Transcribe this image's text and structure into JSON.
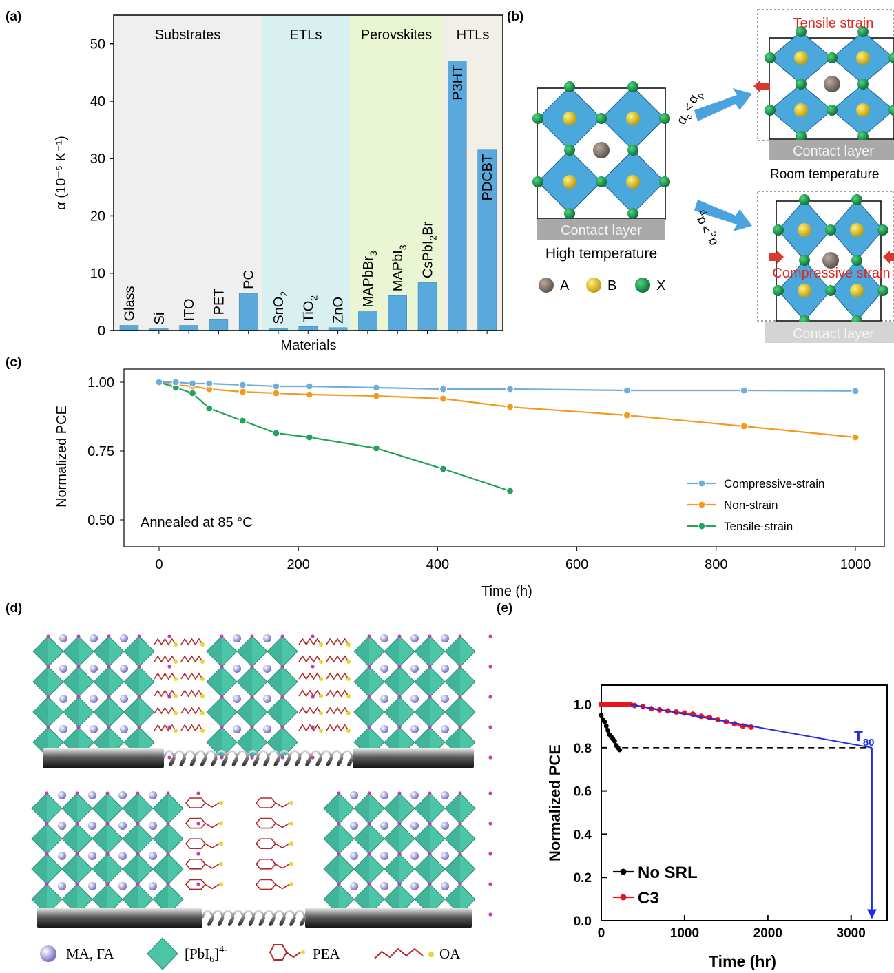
{
  "panels": {
    "a": "(a)",
    "b": "(b)",
    "c": "(c)",
    "d": "(d)",
    "e": "(e)"
  },
  "colors": {
    "bar": "#5aa9dc",
    "substrates_bg": "#efefef",
    "etls_bg": "#d9f0f0",
    "perovskites_bg": "#eaf5d3",
    "htls_bg": "#f2efe9",
    "compressive": "#6faedc",
    "nonstrain": "#f39a1e",
    "tensile": "#22a35a",
    "no_srl": "#000000",
    "c3": "#e8141b",
    "fit": "#1f2ee6",
    "red_text": "#e0261f"
  },
  "chart_data": [
    {
      "id": "a",
      "type": "bar",
      "ylabel": "α (10⁻⁵ K⁻¹)",
      "xlabel": "Materials",
      "ylim": [
        0,
        55
      ],
      "yticks": [
        0,
        10,
        20,
        30,
        40,
        50
      ],
      "groups": [
        {
          "name": "Substrates",
          "from": 0,
          "to": 4
        },
        {
          "name": "ETLs",
          "from": 5,
          "to": 7
        },
        {
          "name": "Perovskites",
          "from": 8,
          "to": 10
        },
        {
          "name": "HTLs",
          "from": 11,
          "to": 12
        }
      ],
      "categories": [
        "Glass",
        "Si",
        "ITO",
        "PET",
        "PC",
        "SnO2",
        "TiO2",
        "ZnO",
        "MAPbBr3",
        "MAPbI3",
        "CsPbI2Br",
        "P3HT",
        "PDCBT"
      ],
      "category_display": [
        {
          "main": "Glass",
          "sub": ""
        },
        {
          "main": "Si",
          "sub": ""
        },
        {
          "main": "ITO",
          "sub": ""
        },
        {
          "main": "PET",
          "sub": ""
        },
        {
          "main": "PC",
          "sub": ""
        },
        {
          "main": "SnO",
          "sub": "2"
        },
        {
          "main": "TiO",
          "sub": "2"
        },
        {
          "main": "ZnO",
          "sub": ""
        },
        {
          "main": "MAPbBr",
          "sub": "3"
        },
        {
          "main": "MAPbI",
          "sub": "3"
        },
        {
          "main": "CsPbI",
          "sub": "2",
          "tail": "Br"
        },
        {
          "main": "P3HT",
          "sub": ""
        },
        {
          "main": "PDCBT",
          "sub": ""
        }
      ],
      "values": [
        0.9,
        0.3,
        0.9,
        2.0,
        6.5,
        0.4,
        0.7,
        0.5,
        3.3,
        6.1,
        8.4,
        47.0,
        31.5
      ],
      "grid": false
    },
    {
      "id": "c",
      "type": "line",
      "xlabel": "Time (h)",
      "ylabel": "Normalized PCE",
      "xlim": [
        -50,
        1040
      ],
      "ylim": [
        0.5,
        1.03
      ],
      "xticks": [
        0,
        200,
        400,
        600,
        800,
        1000
      ],
      "yticks": [
        0.5,
        0.75,
        1.0
      ],
      "ytick_labels": [
        "0.50",
        "0.75",
        "1.00"
      ],
      "annotation": "Annealed at 85 °C",
      "legend_position": "bottom-right",
      "series": [
        {
          "name": "Compressive-strain",
          "x": [
            0,
            24,
            48,
            72,
            120,
            168,
            216,
            312,
            408,
            504,
            672,
            840,
            1000
          ],
          "y": [
            1.0,
            1.0,
            0.995,
            0.995,
            0.99,
            0.985,
            0.985,
            0.98,
            0.975,
            0.975,
            0.97,
            0.97,
            0.968
          ]
        },
        {
          "name": "Non-strain",
          "x": [
            0,
            24,
            48,
            72,
            120,
            168,
            216,
            312,
            408,
            504,
            672,
            840,
            1000
          ],
          "y": [
            1.0,
            0.99,
            0.985,
            0.975,
            0.965,
            0.96,
            0.955,
            0.95,
            0.94,
            0.91,
            0.88,
            0.84,
            0.8
          ]
        },
        {
          "name": "Tensile-strain",
          "x": [
            0,
            24,
            48,
            72,
            120,
            168,
            216,
            312,
            408,
            504
          ],
          "y": [
            1.0,
            0.98,
            0.96,
            0.905,
            0.86,
            0.815,
            0.8,
            0.76,
            0.685,
            0.605
          ]
        }
      ]
    },
    {
      "id": "e",
      "type": "line",
      "xlabel": "Time (hr)",
      "ylabel": "Normalized PCE",
      "xlim": [
        0,
        3700
      ],
      "ylim": [
        0,
        1.08
      ],
      "xticks": [
        0,
        1000,
        2000,
        3000
      ],
      "yticks": [
        0.0,
        0.2,
        0.4,
        0.6,
        0.8,
        1.0
      ],
      "ytick_labels": [
        "0.0",
        "0.2",
        "0.4",
        "0.6",
        "0.8",
        "1.0"
      ],
      "annotation": "T",
      "annotation_sub": "80",
      "legend_position": "bottom-left",
      "threshold_y": 0.8,
      "t80_x": 3250,
      "series": [
        {
          "name": "No SRL",
          "x": [
            0,
            20,
            40,
            60,
            80,
            100,
            120,
            140,
            160,
            180,
            200,
            220
          ],
          "y": [
            0.95,
            0.93,
            0.92,
            0.9,
            0.88,
            0.86,
            0.85,
            0.84,
            0.83,
            0.81,
            0.8,
            0.79
          ]
        },
        {
          "name": "C3",
          "x": [
            0,
            50,
            100,
            150,
            200,
            250,
            300,
            350,
            400,
            500,
            600,
            700,
            800,
            900,
            1000,
            1100,
            1200,
            1300,
            1400,
            1500,
            1600,
            1700,
            1800
          ],
          "y": [
            1.0,
            1.0,
            1.0,
            1.0,
            1.0,
            1.0,
            1.0,
            1.0,
            0.995,
            0.99,
            0.98,
            0.975,
            0.97,
            0.965,
            0.96,
            0.955,
            0.945,
            0.94,
            0.93,
            0.92,
            0.91,
            0.9,
            0.895
          ]
        },
        {
          "name": "fit",
          "x": [
            350,
            3250
          ],
          "y": [
            1.0,
            0.8
          ]
        }
      ]
    }
  ],
  "panel_b": {
    "tensile_strain": "Tensile strain",
    "contact_layer": "Contact layer",
    "room_temperature": "Room temperature",
    "high_temperature": "High temperature",
    "compressive_strain": "Compressive strain",
    "rel_top_alpha1": "α",
    "rel_top_sub1": "c",
    "rel_top_op": "<",
    "rel_top_alpha2": "α",
    "rel_top_sub2": "p",
    "rel_bot_op": ">",
    "legend": [
      {
        "label": "A",
        "icon": "A-site-cation-icon"
      },
      {
        "label": "B",
        "icon": "B-site-cation-icon"
      },
      {
        "label": "X",
        "icon": "X-site-anion-icon"
      }
    ]
  },
  "panel_d": {
    "legend": [
      {
        "label": "MA, FA",
        "icon": "sphere-icon"
      },
      {
        "label": "[PbI",
        "sub": "6",
        "sup": "]",
        "sup2": "4-",
        "icon": "octahedron-icon"
      },
      {
        "label": "PEA",
        "icon": "phenyl-ethylamine-icon"
      },
      {
        "label": "OA",
        "icon": "alkyl-chain-icon"
      }
    ]
  }
}
